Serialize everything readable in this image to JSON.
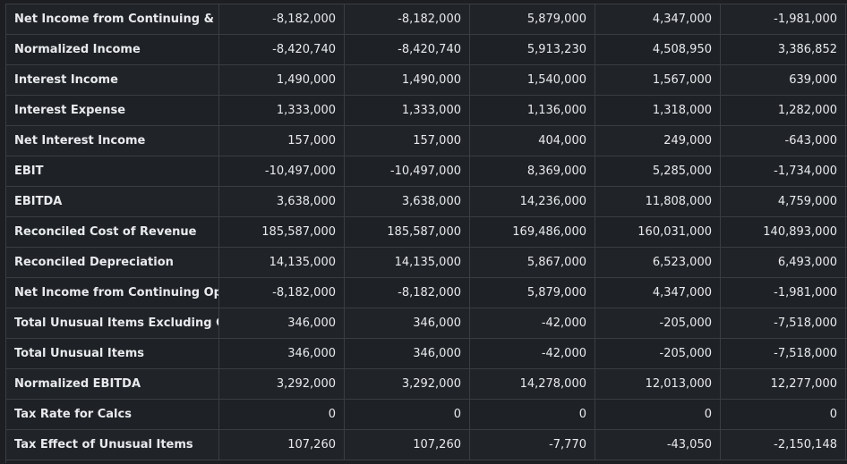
{
  "table": {
    "rows": [
      {
        "label": "Net Income from Continuing & D...",
        "values": [
          "-8,182,000",
          "-8,182,000",
          "5,879,000",
          "4,347,000",
          "-1,981,000"
        ]
      },
      {
        "label": "Normalized Income",
        "values": [
          "-8,420,740",
          "-8,420,740",
          "5,913,230",
          "4,508,950",
          "3,386,852"
        ]
      },
      {
        "label": "Interest Income",
        "values": [
          "1,490,000",
          "1,490,000",
          "1,540,000",
          "1,567,000",
          "639,000"
        ]
      },
      {
        "label": "Interest Expense",
        "values": [
          "1,333,000",
          "1,333,000",
          "1,136,000",
          "1,318,000",
          "1,282,000"
        ]
      },
      {
        "label": "Net Interest Income",
        "values": [
          "157,000",
          "157,000",
          "404,000",
          "249,000",
          "-643,000"
        ]
      },
      {
        "label": "EBIT",
        "values": [
          "-10,497,000",
          "-10,497,000",
          "8,369,000",
          "5,285,000",
          "-1,734,000"
        ]
      },
      {
        "label": "EBITDA",
        "values": [
          "3,638,000",
          "3,638,000",
          "14,236,000",
          "11,808,000",
          "4,759,000"
        ]
      },
      {
        "label": "Reconciled Cost of Revenue",
        "values": [
          "185,587,000",
          "185,587,000",
          "169,486,000",
          "160,031,000",
          "140,893,000"
        ]
      },
      {
        "label": "Reconciled Depreciation",
        "values": [
          "14,135,000",
          "14,135,000",
          "5,867,000",
          "6,523,000",
          "6,493,000"
        ]
      },
      {
        "label": "Net Income from Continuing Op...",
        "values": [
          "-8,182,000",
          "-8,182,000",
          "5,879,000",
          "4,347,000",
          "-1,981,000"
        ]
      },
      {
        "label": "Total Unusual Items Excluding G...",
        "values": [
          "346,000",
          "346,000",
          "-42,000",
          "-205,000",
          "-7,518,000"
        ]
      },
      {
        "label": "Total Unusual Items",
        "values": [
          "346,000",
          "346,000",
          "-42,000",
          "-205,000",
          "-7,518,000"
        ]
      },
      {
        "label": "Normalized EBITDA",
        "values": [
          "3,292,000",
          "3,292,000",
          "14,278,000",
          "12,013,000",
          "12,277,000"
        ]
      },
      {
        "label": "Tax Rate for Calcs",
        "values": [
          "0",
          "0",
          "0",
          "0",
          "0"
        ]
      },
      {
        "label": "Tax Effect of Unusual Items",
        "values": [
          "107,260",
          "107,260",
          "-7,770",
          "-43,050",
          "-2,150,148"
        ]
      }
    ]
  },
  "colors": {
    "background": "#1c1e22",
    "grid_line": "#3a3e44",
    "text": "#e8eaed"
  }
}
